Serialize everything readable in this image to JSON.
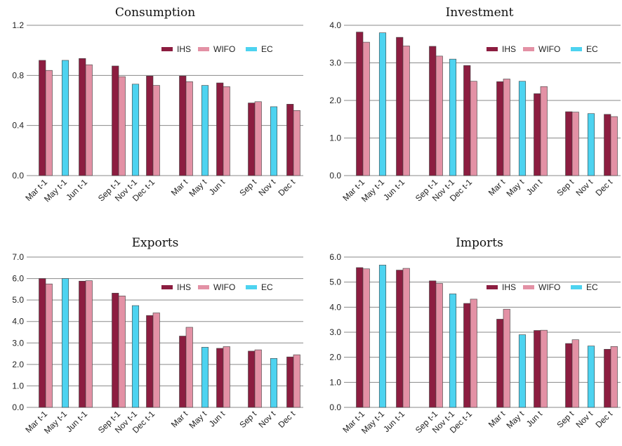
{
  "legend": [
    "IHS",
    "WIFO",
    "EC"
  ],
  "colors": {
    "IHS": "#8c1d40",
    "WIFO": "#e391a5",
    "EC": "#4dd3f0"
  },
  "chart_data": [
    {
      "type": "bar",
      "title": "Consumption",
      "ylim": [
        0,
        1.2
      ],
      "yticks": [
        "0.0",
        "0.4",
        "0.8",
        "1.2"
      ],
      "tickvals": [
        0,
        0.4,
        0.8,
        1.2
      ],
      "categories": [
        "Mar t-1",
        "May t-1",
        "Jun t-1",
        "Sep t-1",
        "Nov t-1",
        "Dec t-1",
        "Mar t",
        "May t",
        "Jun t",
        "Sep t",
        "Nov t",
        "Dec t"
      ],
      "series": [
        {
          "name": "IHS",
          "values": [
            0.92,
            null,
            0.935,
            0.875,
            null,
            0.795,
            0.795,
            null,
            0.74,
            0.58,
            null,
            0.57
          ]
        },
        {
          "name": "WIFO",
          "values": [
            0.84,
            null,
            0.885,
            0.79,
            null,
            0.72,
            0.75,
            null,
            0.71,
            0.59,
            null,
            0.52
          ]
        },
        {
          "name": "EC",
          "values": [
            null,
            0.92,
            null,
            null,
            0.73,
            null,
            null,
            0.72,
            null,
            null,
            0.55,
            null
          ]
        }
      ],
      "grid": true,
      "legend_position": "top-right"
    },
    {
      "type": "bar",
      "title": "Investment",
      "ylim": [
        0,
        4.0
      ],
      "yticks": [
        "0.0",
        "1.0",
        "2.0",
        "3.0",
        "4.0"
      ],
      "tickvals": [
        0,
        1,
        2,
        3,
        4
      ],
      "categories": [
        "Mar t-1",
        "May t-1",
        "Jun t-1",
        "Sep t-1",
        "Nov t-1",
        "Dec t-1",
        "Mar t",
        "May t",
        "Jun t",
        "Sep t",
        "Nov t",
        "Dec t"
      ],
      "series": [
        {
          "name": "IHS",
          "values": [
            3.82,
            null,
            3.68,
            3.44,
            null,
            2.93,
            2.5,
            null,
            2.18,
            1.7,
            null,
            1.63
          ]
        },
        {
          "name": "WIFO",
          "values": [
            3.55,
            null,
            3.45,
            3.18,
            null,
            2.51,
            2.57,
            null,
            2.37,
            1.69,
            null,
            1.57
          ]
        },
        {
          "name": "EC",
          "values": [
            null,
            3.8,
            null,
            null,
            3.1,
            null,
            null,
            2.51,
            null,
            null,
            1.65,
            null
          ]
        }
      ],
      "grid": true,
      "legend_position": "top-right"
    },
    {
      "type": "bar",
      "title": "Exports",
      "ylim": [
        0,
        7.0
      ],
      "yticks": [
        "0.0",
        "1.0",
        "2.0",
        "3.0",
        "4.0",
        "5.0",
        "6.0",
        "7.0"
      ],
      "tickvals": [
        0,
        1,
        2,
        3,
        4,
        5,
        6,
        7
      ],
      "categories": [
        "Mar t-1",
        "May t-1",
        "Jun t-1",
        "Sep t-1",
        "Nov t-1",
        "Dec t-1",
        "Mar t",
        "May t",
        "Jun t",
        "Sep t",
        "Nov t",
        "Dec t"
      ],
      "series": [
        {
          "name": "IHS",
          "values": [
            6.0,
            null,
            5.88,
            5.32,
            null,
            4.28,
            3.32,
            null,
            2.75,
            2.62,
            null,
            2.35
          ]
        },
        {
          "name": "WIFO",
          "values": [
            5.75,
            null,
            5.9,
            5.19,
            null,
            4.4,
            3.73,
            null,
            2.83,
            2.68,
            null,
            2.45
          ]
        },
        {
          "name": "EC",
          "values": [
            null,
            6.0,
            null,
            null,
            4.74,
            null,
            null,
            2.8,
            null,
            null,
            2.28,
            null
          ]
        }
      ],
      "grid": true,
      "legend_position": "top-right"
    },
    {
      "type": "bar",
      "title": "Imports",
      "ylim": [
        0,
        6.0
      ],
      "yticks": [
        "0.0",
        "1.0",
        "2.0",
        "3.0",
        "4.0",
        "5.0",
        "6.0"
      ],
      "tickvals": [
        0,
        1,
        2,
        3,
        4,
        5,
        6
      ],
      "categories": [
        "Mar t-1",
        "May t-1",
        "Jun t-1",
        "Sep t-1",
        "Nov t-1",
        "Dec t-1",
        "Mar t",
        "May t",
        "Jun t",
        "Sep t",
        "Nov t",
        "Dec t"
      ],
      "series": [
        {
          "name": "IHS",
          "values": [
            5.58,
            null,
            5.48,
            5.05,
            null,
            4.15,
            3.52,
            null,
            3.07,
            2.55,
            null,
            2.32
          ]
        },
        {
          "name": "WIFO",
          "values": [
            5.53,
            null,
            5.55,
            4.95,
            null,
            4.32,
            3.92,
            null,
            3.08,
            2.7,
            null,
            2.43
          ]
        },
        {
          "name": "EC",
          "values": [
            null,
            5.68,
            null,
            null,
            4.53,
            null,
            null,
            2.9,
            null,
            null,
            2.45,
            null
          ]
        }
      ],
      "grid": true,
      "legend_position": "top-right"
    }
  ]
}
